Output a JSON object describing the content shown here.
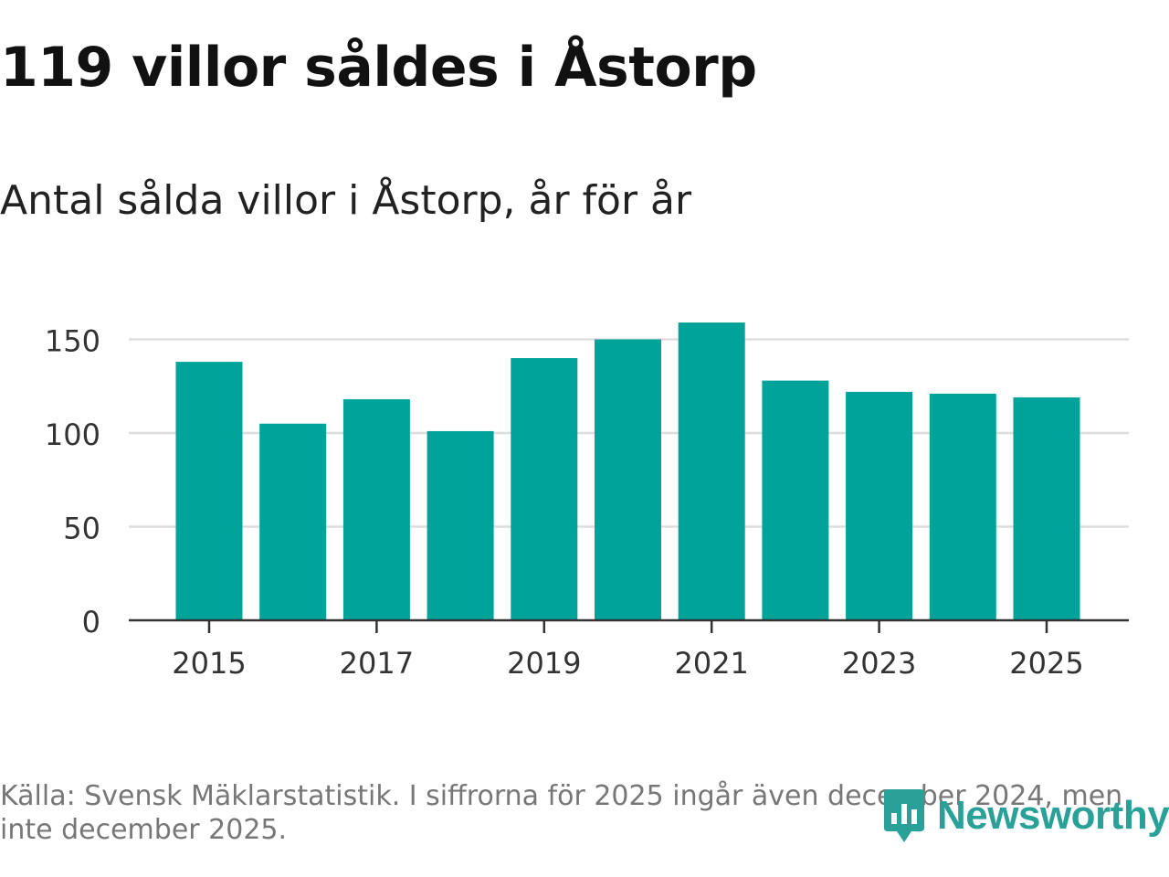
{
  "header": {
    "title": "119 villor såldes i Åstorp",
    "subtitle": "Antal sålda villor i Åstorp, år för år"
  },
  "footer": {
    "source": "Källa: Svensk Mäklarstatistik. I siffrorna för 2025 ingår även december 2024, men inte december 2025.",
    "brand": "Newsworthy"
  },
  "colors": {
    "bar": "#00a39a",
    "grid": "#dddddd",
    "axis": "#333333",
    "brand": "#2aa198"
  },
  "chart_data": {
    "type": "bar",
    "title": "Antal sålda villor i Åstorp, år för år",
    "xlabel": "",
    "ylabel": "",
    "categories": [
      "2015",
      "2016",
      "2017",
      "2018",
      "2019",
      "2020",
      "2021",
      "2022",
      "2023",
      "2024",
      "2025"
    ],
    "values": [
      138,
      105,
      118,
      101,
      140,
      150,
      159,
      128,
      122,
      121,
      119
    ],
    "ylim": [
      0,
      165
    ],
    "yticks": [
      0,
      50,
      100,
      150
    ],
    "xtick_labels": [
      "2015",
      "2017",
      "2019",
      "2021",
      "2023",
      "2025"
    ],
    "grid": true
  }
}
